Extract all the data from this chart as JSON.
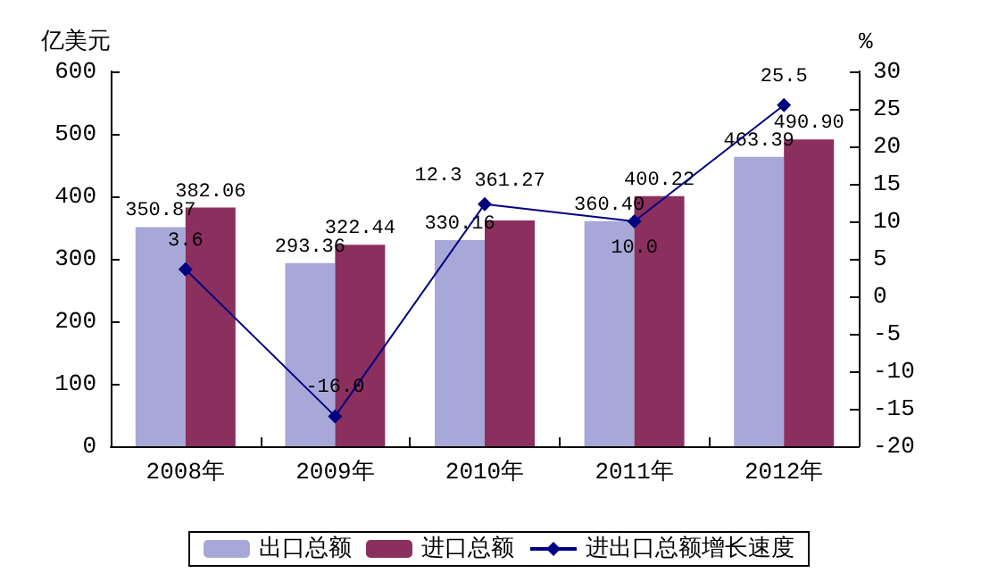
{
  "chart_data": {
    "type": "bar",
    "ylabel": "亿美元",
    "y2label": "%",
    "categories": [
      "2008年",
      "2009年",
      "2010年",
      "2011年",
      "2012年"
    ],
    "series": [
      {
        "name": "出口总额",
        "color": "#a8a8d8",
        "values": [
          350.87,
          293.36,
          330.16,
          360.4,
          463.39
        ],
        "value_labels": [
          "350.87",
          "293.36",
          "330.16",
          "360.40",
          "463.39"
        ]
      },
      {
        "name": "进口总额",
        "color": "#8b2f5f",
        "values": [
          382.06,
          322.44,
          361.27,
          400.22,
          490.9
        ],
        "value_labels": [
          "382.06",
          "322.44",
          "361.27",
          "400.22",
          "490.90"
        ]
      },
      {
        "name": "进出口总额增长速度",
        "type": "line",
        "axis": "y2",
        "color": "#000080",
        "values": [
          3.6,
          -16.0,
          12.3,
          10.0,
          25.5
        ],
        "value_labels": [
          "3.6",
          "-16.0",
          "12.3",
          "10.0",
          "25.5"
        ]
      }
    ],
    "ylim": [
      0,
      600
    ],
    "yticks": [
      0,
      100,
      200,
      300,
      400,
      500,
      600
    ],
    "y2lim": [
      -20,
      30
    ],
    "y2ticks": [
      -20,
      -15,
      -10,
      -5,
      0,
      5,
      10,
      15,
      20,
      25,
      30
    ],
    "grid": false,
    "legend": "bottom",
    "marker": "diamond",
    "line_style": "solid"
  }
}
